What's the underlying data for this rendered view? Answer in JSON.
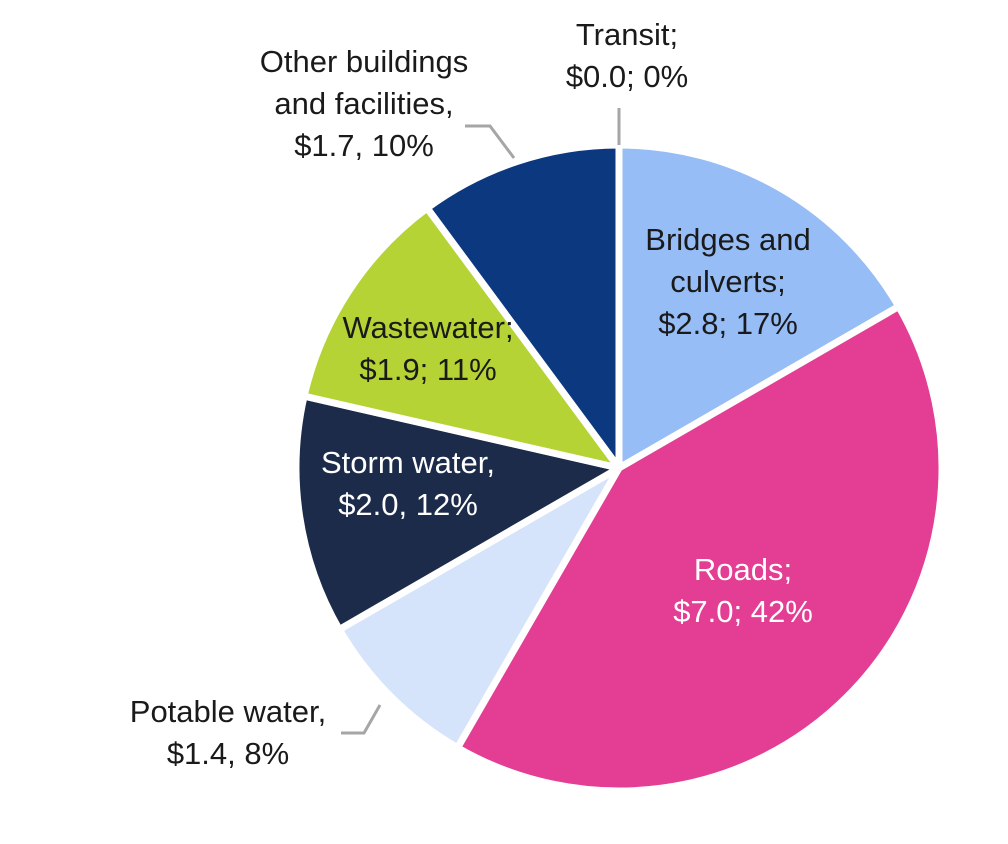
{
  "chart_data": {
    "type": "pie",
    "title": "",
    "slices": [
      {
        "label_lines": [
          "Transit;",
          "$0.0; 0%"
        ],
        "value": 0.0,
        "percent": 0,
        "color": "#ffffff",
        "label_color": "#1a1a1a",
        "label_outside": true
      },
      {
        "label_lines": [
          "Bridges and",
          "culverts;",
          "$2.8; 17%"
        ],
        "value": 2.8,
        "percent": 17,
        "color": "#96bdf6",
        "label_color": "#1a1a1a",
        "label_outside": false
      },
      {
        "label_lines": [
          "Roads;",
          "$7.0; 42%"
        ],
        "value": 7.0,
        "percent": 42,
        "color": "#e33d94",
        "label_color": "#ffffff",
        "label_outside": false
      },
      {
        "label_lines": [
          "Potable water,",
          "$1.4, 8%"
        ],
        "value": 1.4,
        "percent": 8,
        "color": "#d5e4fa",
        "label_color": "#1a1a1a",
        "label_outside": true
      },
      {
        "label_lines": [
          "Storm water,",
          "$2.0, 12%"
        ],
        "value": 2.0,
        "percent": 12,
        "color": "#1c2b4a",
        "label_color": "#ffffff",
        "label_outside": false
      },
      {
        "label_lines": [
          "Wastewater;",
          "$1.9; 11%"
        ],
        "value": 1.9,
        "percent": 11,
        "color": "#b5d335",
        "label_color": "#1a1a1a",
        "label_outside": false
      },
      {
        "label_lines": [
          "Other buildings",
          "and facilities,",
          "$1.7, 10%"
        ],
        "value": 1.7,
        "percent": 10,
        "color": "#0c3880",
        "label_color": "#1a1a1a",
        "label_outside": true
      }
    ],
    "leader_line_color": "#a6a6a6"
  }
}
